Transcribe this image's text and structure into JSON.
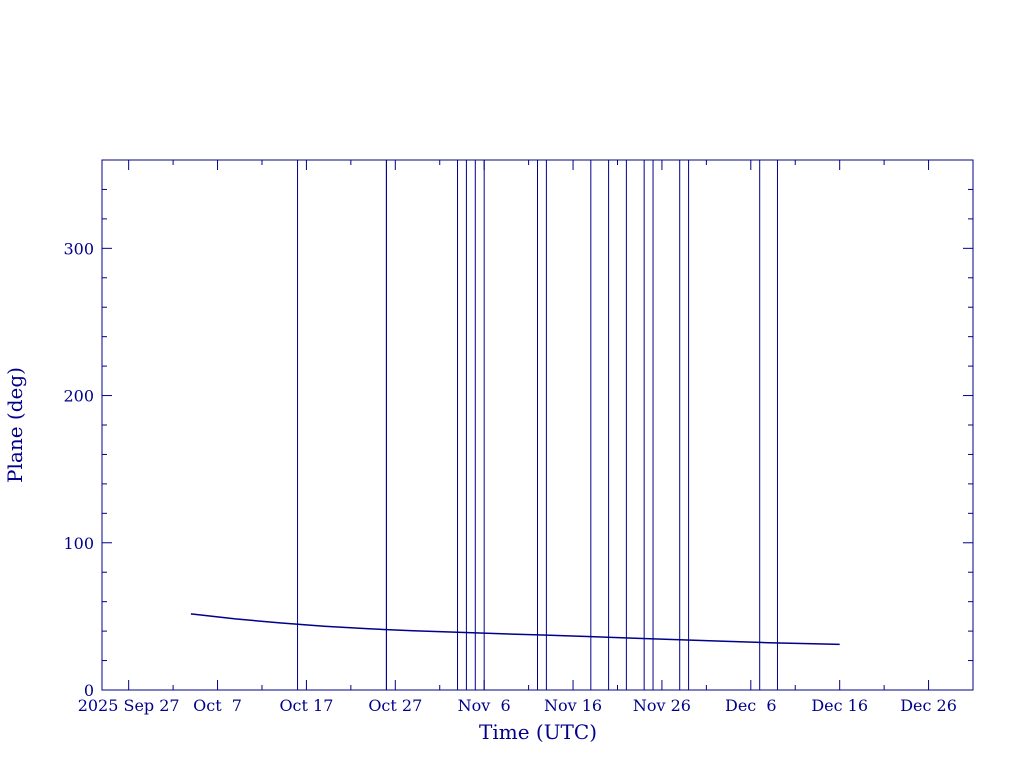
{
  "chart_data": {
    "type": "line",
    "title": "",
    "xlabel": "Time (UTC)",
    "ylabel": "Plane (deg)",
    "xlim": [
      "2025-09-24",
      "2025-12-31"
    ],
    "ylim": [
      0,
      360
    ],
    "x_ticks": [
      {
        "date": "2025-09-27",
        "label": "2025 Sep 27"
      },
      {
        "date": "2025-10-07",
        "label": "Oct  7"
      },
      {
        "date": "2025-10-17",
        "label": "Oct 17"
      },
      {
        "date": "2025-10-27",
        "label": "Oct 27"
      },
      {
        "date": "2025-11-06",
        "label": "Nov  6"
      },
      {
        "date": "2025-11-16",
        "label": "Nov 16"
      },
      {
        "date": "2025-11-26",
        "label": "Nov 26"
      },
      {
        "date": "2025-12-06",
        "label": "Dec  6"
      },
      {
        "date": "2025-12-16",
        "label": "Dec 16"
      },
      {
        "date": "2025-12-26",
        "label": "Dec 26"
      }
    ],
    "y_ticks": [
      {
        "value": 0,
        "label": "0"
      },
      {
        "value": 100,
        "label": "100"
      },
      {
        "value": 200,
        "label": "200"
      },
      {
        "value": 300,
        "label": "300"
      }
    ],
    "series": [
      {
        "x": [
          "2025-10-04",
          "2025-10-09",
          "2025-10-14",
          "2025-10-19",
          "2025-10-24",
          "2025-10-29",
          "2025-11-03",
          "2025-11-08",
          "2025-11-13",
          "2025-11-18",
          "2025-11-23",
          "2025-11-28",
          "2025-12-03",
          "2025-12-08",
          "2025-12-13",
          "2025-12-16"
        ],
        "y": [
          51.7,
          48.3,
          45.6,
          43.3,
          41.6,
          40.3,
          39.2,
          38.2,
          37.3,
          36.3,
          35.2,
          34.1,
          33.1,
          32.1,
          31.4,
          31.0
        ]
      }
    ],
    "vertical_lines": [
      "2025-10-16",
      "2025-10-26",
      "2025-10-26",
      "2025-11-03",
      "2025-11-04",
      "2025-11-05",
      "2025-11-06",
      "2025-11-12",
      "2025-11-13",
      "2025-11-18",
      "2025-11-20",
      "2025-11-22",
      "2025-11-24",
      "2025-11-25",
      "2025-11-28",
      "2025-11-29",
      "2025-12-07",
      "2025-12-09"
    ],
    "grid": false,
    "legend": "none",
    "colors": {
      "axes": "#00008b",
      "series": "#00008b",
      "vertical_lines": "#00008b"
    }
  }
}
